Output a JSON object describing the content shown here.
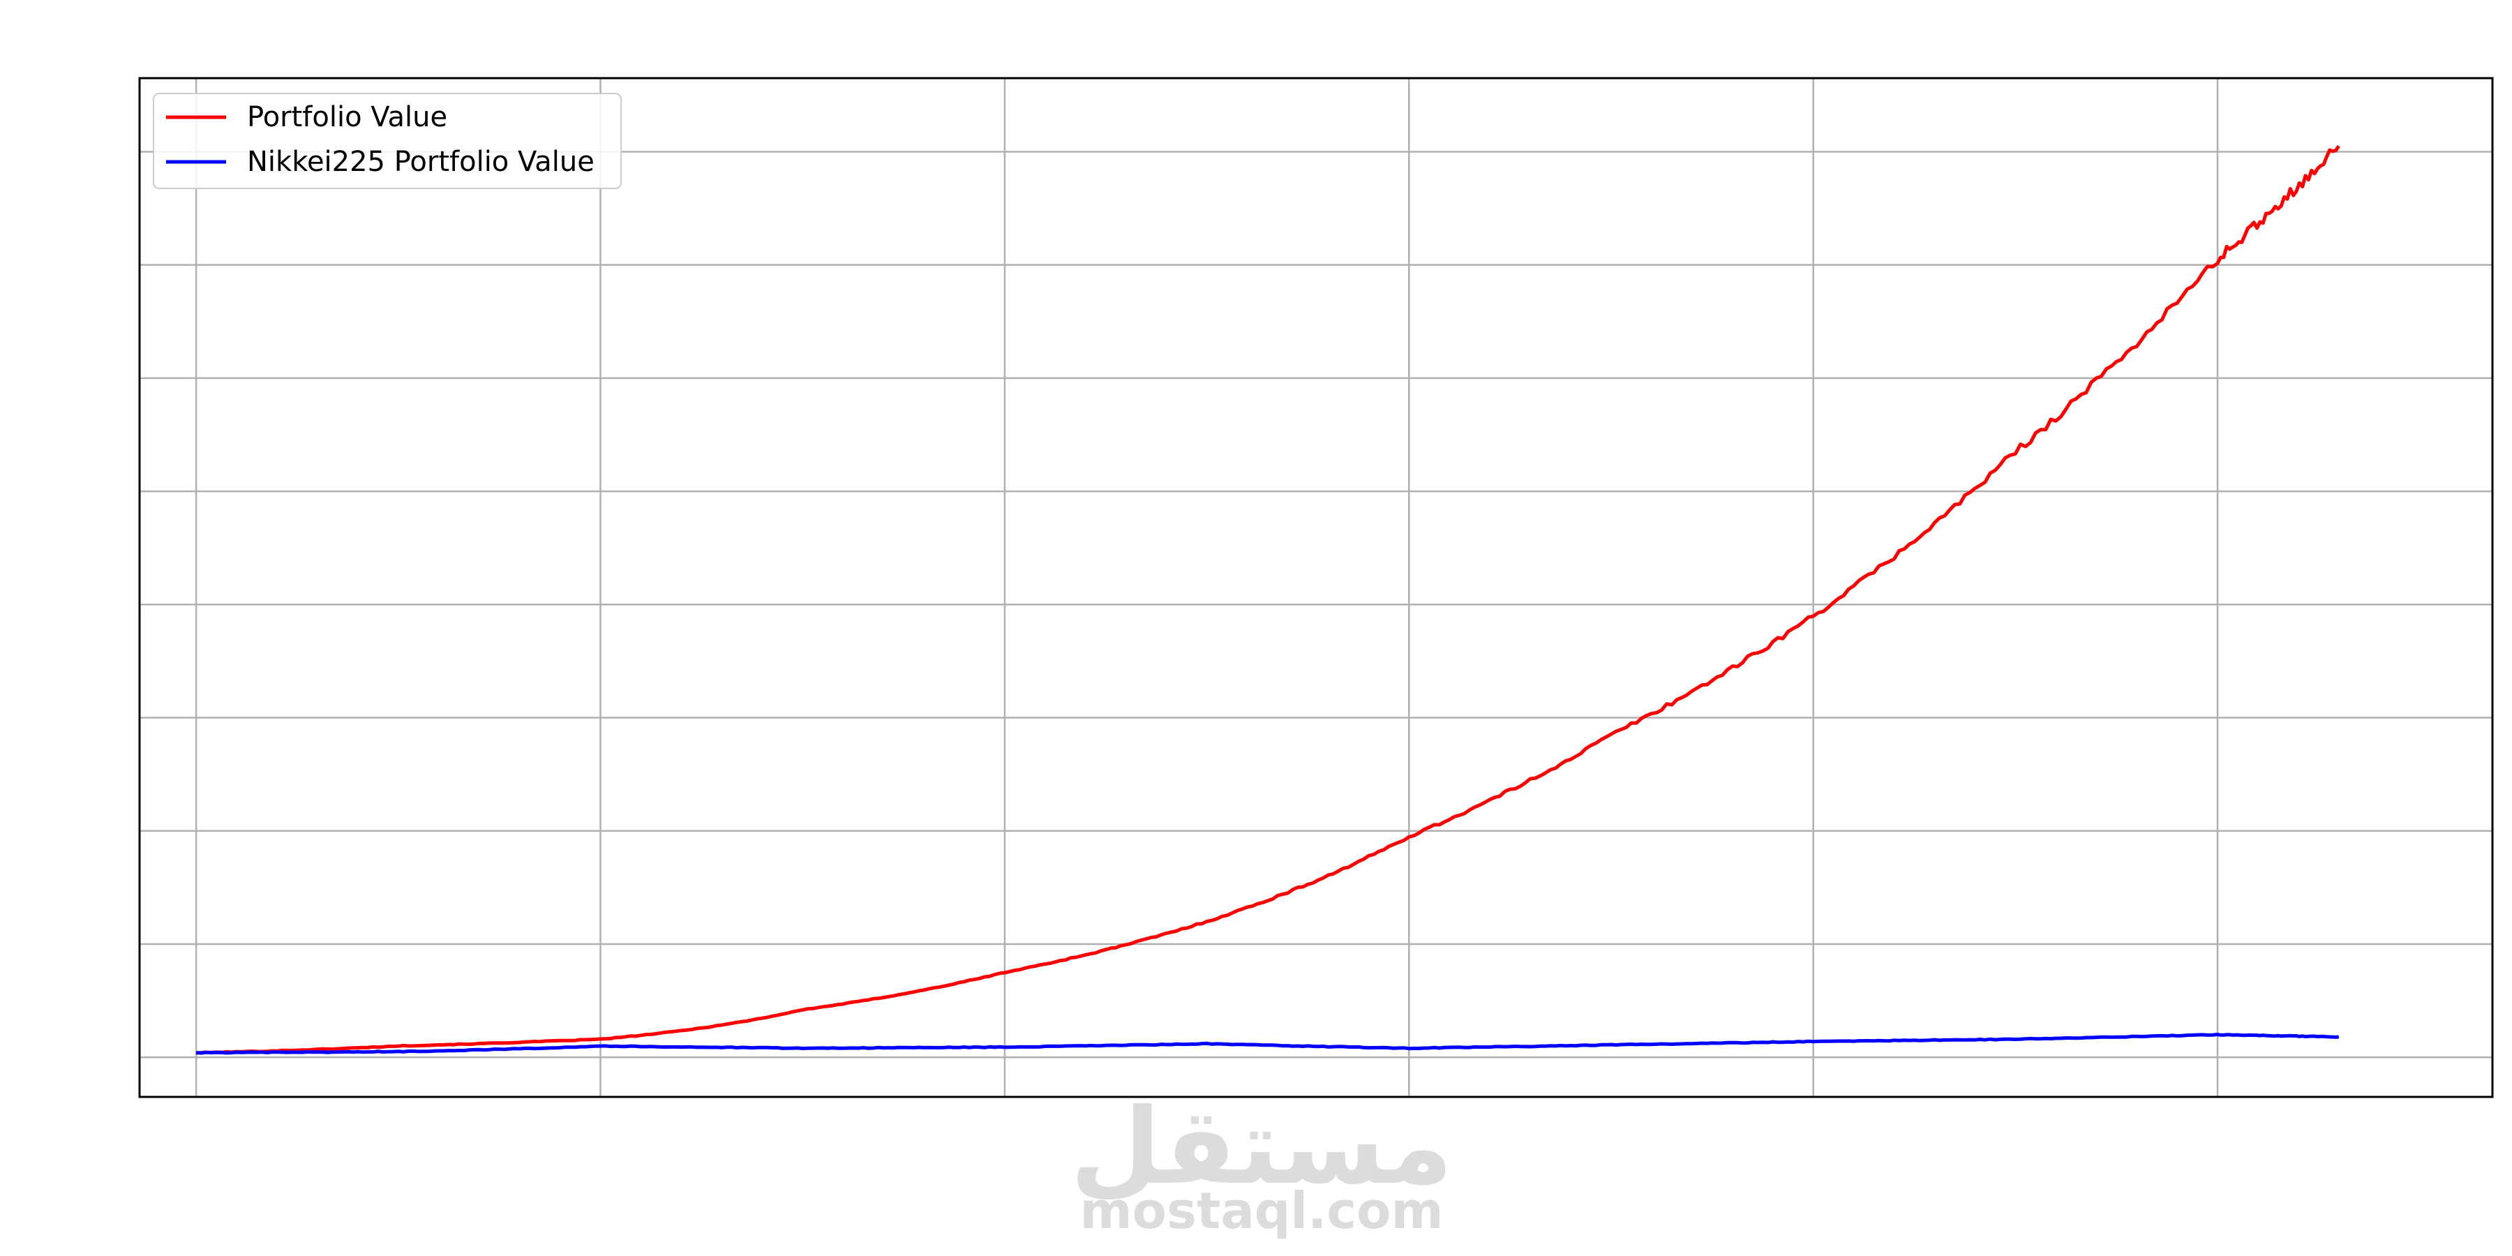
{
  "chart_data": {
    "type": "line",
    "title": "",
    "xlabel": "",
    "ylabel": "",
    "x_tick_labels_shown": false,
    "y_tick_labels_shown": false,
    "grid": true,
    "legend_position": "upper-left",
    "x": [
      0,
      0.5,
      1,
      1.5,
      2,
      2.5,
      3,
      3.5,
      4,
      4.5,
      5,
      5.3
    ],
    "ylim": [
      -0.35,
      8.65
    ],
    "series": [
      {
        "name": "Portfolio Value",
        "color": "#ff0000",
        "values": [
          0.04,
          0.1,
          0.16,
          0.42,
          0.75,
          1.2,
          1.95,
          2.85,
          3.9,
          5.35,
          7.05,
          8.05
        ]
      },
      {
        "name": "Nikkei225 Portfolio Value",
        "color": "#0000ff",
        "values": [
          0.04,
          0.05,
          0.1,
          0.08,
          0.09,
          0.12,
          0.08,
          0.11,
          0.14,
          0.16,
          0.2,
          0.18
        ]
      }
    ]
  },
  "watermark": {
    "arabic": "مستقل",
    "latin": "mostaql.com"
  }
}
